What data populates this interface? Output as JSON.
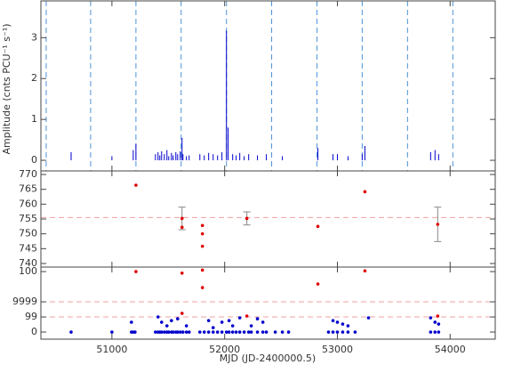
{
  "chart_data": [
    {
      "type": "bar",
      "ylabel": "Amplitude (cnts PCU⁻¹ s⁻¹)",
      "xlim": [
        50370,
        54400
      ],
      "ylim": [
        -0.26,
        3.9
      ],
      "yticks": [
        0,
        1,
        2,
        3
      ],
      "vlines": [
        50417,
        50811,
        51213,
        51614,
        52016,
        52417,
        52819,
        53220,
        53622,
        54024
      ],
      "vline_color": "#4b93d9",
      "series": [
        {
          "color": "#0000cc",
          "x": [
            50638,
            51000,
            51189,
            51213,
            51386,
            51409,
            51425,
            51441,
            51465,
            51488,
            51504,
            51528,
            51543,
            51567,
            51583,
            51606,
            51622,
            51630,
            51661,
            51685,
            51780,
            51819,
            51858,
            51898,
            51937,
            51976,
            52016,
            52031,
            52071,
            52102,
            52134,
            52173,
            52213,
            52291,
            52370,
            52512,
            52827,
            52961,
            53000,
            53094,
            53220,
            53244,
            53827,
            53866,
            53898
          ],
          "values": [
            0.2,
            0.1,
            0.25,
            0.4,
            0.15,
            0.2,
            0.12,
            0.22,
            0.15,
            0.25,
            0.1,
            0.18,
            0.12,
            0.2,
            0.15,
            0.22,
            0.55,
            0.15,
            0.1,
            0.12,
            0.15,
            0.12,
            0.18,
            0.15,
            0.12,
            0.2,
            3.17,
            0.8,
            0.15,
            0.12,
            0.18,
            0.1,
            0.15,
            0.12,
            0.15,
            0.1,
            0.3,
            0.15,
            0.15,
            0.1,
            0.15,
            0.35,
            0.2,
            0.25,
            0.15
          ]
        }
      ]
    },
    {
      "type": "scatter",
      "xlim": [
        50370,
        54400
      ],
      "ylim": [
        738.8,
        771.2
      ],
      "yticks": [
        740,
        745,
        750,
        755,
        760,
        765,
        770
      ],
      "hlines": [
        755.5
      ],
      "hline_color": "#f2a0a0",
      "error_color": "#888888",
      "series": [
        {
          "color": "#e00000",
          "x": [
            51213,
            51622,
            51622,
            51803,
            51803,
            51803,
            52197,
            52827,
            53244,
            53890
          ],
          "values": [
            766.4,
            755.2,
            752.2,
            752.8,
            750,
            745.8,
            755.2,
            752.5,
            764.2,
            753.2
          ],
          "errors": [
            null,
            3.8,
            null,
            null,
            null,
            null,
            2.2,
            null,
            null,
            5.8
          ]
        }
      ]
    },
    {
      "type": "scatter",
      "xlabel": "MJD (JD-2400000.5)",
      "xlim": [
        50370,
        54400
      ],
      "xticks": [
        51000,
        52000,
        53000,
        54000
      ],
      "ylim": [
        -0.47,
        4.3
      ],
      "yticks": [
        0,
        {
          "value": 1,
          "label": "99"
        },
        {
          "value": 2,
          "label": "9999"
        },
        {
          "value": 4,
          "label": "100"
        }
      ],
      "hlines": [
        1,
        2
      ],
      "hline_color": "#f2a0a0",
      "series": [
        {
          "color": "#0000cc",
          "x": [
            50638,
            51000,
            51173,
            51189,
            51205,
            51173,
            51386,
            51409,
            51425,
            51441,
            51465,
            51488,
            51504,
            51528,
            51543,
            51567,
            51583,
            51606,
            51630,
            51661,
            51685,
            51409,
            51441,
            51488,
            51528,
            51583,
            51661,
            51780,
            51819,
            51858,
            51898,
            51937,
            51976,
            52016,
            52039,
            52071,
            52102,
            52134,
            52173,
            52213,
            52236,
            52291,
            52339,
            52370,
            51858,
            51898,
            51976,
            52039,
            52071,
            52134,
            52236,
            52291,
            52339,
            52449,
            52512,
            52567,
            52921,
            52961,
            53000,
            53047,
            53094,
            53157,
            52961,
            53000,
            53047,
            53094,
            53276,
            53827,
            53866,
            53898,
            53827,
            53866,
            53898
          ],
          "values": [
            0,
            0,
            0,
            0,
            0,
            0.65,
            0,
            0,
            0,
            0,
            0,
            0,
            0,
            0,
            0,
            0,
            0,
            0,
            0,
            0,
            0,
            1.0,
            0.65,
            0.41,
            0.76,
            0.88,
            0.41,
            0,
            0,
            0,
            0,
            0,
            0,
            0,
            0,
            0,
            0,
            0,
            0,
            0,
            0,
            0,
            0,
            0,
            0.76,
            0.29,
            0.65,
            0.76,
            0.41,
            0.94,
            0.41,
            0.88,
            0.65,
            0,
            0,
            0,
            0,
            0,
            0,
            0,
            0,
            0,
            0.76,
            0.65,
            0.53,
            0.41,
            0.94,
            0,
            0,
            0,
            0.94,
            0.65,
            0.53
          ]
        },
        {
          "color": "#e00000",
          "x": [
            51213,
            51622,
            51622,
            51803,
            51803,
            52197,
            52827,
            53244,
            53890
          ],
          "values": [
            4,
            3.9,
            1.24,
            4.1,
            2.94,
            1.06,
            3.18,
            4.05,
            1.06
          ]
        }
      ]
    }
  ]
}
